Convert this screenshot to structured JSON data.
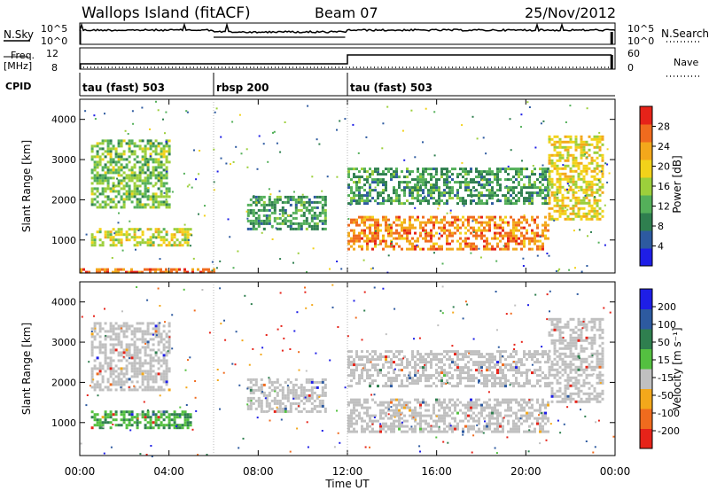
{
  "header": {
    "title": "Wallops Island (fitACF)",
    "beam": "Beam 07",
    "date": "25/Nov/2012"
  },
  "strip": {
    "nsky_label": "N.Sky",
    "nsky_ticks": [
      "10^5",
      "10^0"
    ],
    "nsearch_label": "N.Search",
    "nsearch_ticks": [
      "10^5",
      "10^0"
    ],
    "freq_label": "Freq.",
    "freq_unit": "[MHz]",
    "freq_ticks": [
      "12",
      "8"
    ],
    "nave_label": "Nave",
    "nave_ticks": [
      "60",
      "0"
    ],
    "cpid_label": "CPID",
    "cpid_segments": [
      {
        "label": "tau (fast) 503",
        "start_h": 0,
        "end_h": 6
      },
      {
        "label": "rbsp 200",
        "start_h": 6,
        "end_h": 12
      },
      {
        "label": "tau (fast) 503",
        "start_h": 12,
        "end_h": 24
      }
    ]
  },
  "chart_data": [
    {
      "type": "heatmap",
      "title": "",
      "ylabel": "Slant Range [km]",
      "xlabel": "",
      "xlim_hours": [
        0,
        24
      ],
      "ylim_km": [
        180,
        4500
      ],
      "yticks": [
        "4000",
        "3000",
        "2000",
        "1000"
      ],
      "colorbar": {
        "label": "Power [dB]",
        "ticks": [
          "28",
          "24",
          "20",
          "16",
          "12",
          "8",
          "4"
        ],
        "colors": [
          "#1e1ee6",
          "#2d5aa0",
          "#2f7f4f",
          "#54b05a",
          "#9ccf3b",
          "#f2d21a",
          "#f3a81b",
          "#f06b1e",
          "#e62319"
        ]
      },
      "features": [
        {
          "desc": "near-range E-region",
          "t_h": [
            0,
            6
          ],
          "range_km": [
            180,
            300
          ],
          "power_db": 28
        },
        {
          "desc": "morning echoes",
          "t_h": [
            0.5,
            5
          ],
          "range_km": [
            850,
            1300
          ],
          "power_db": 18
        },
        {
          "desc": "morning far echoes",
          "t_h": [
            0.5,
            4
          ],
          "range_km": [
            1800,
            3500
          ],
          "power_db": 14
        },
        {
          "desc": "rbsp band",
          "t_h": [
            7.5,
            11
          ],
          "range_km": [
            1300,
            2100
          ],
          "power_db": 10
        },
        {
          "desc": "afternoon main band",
          "t_h": [
            12,
            21
          ],
          "range_km": [
            800,
            1600
          ],
          "power_db": 26
        },
        {
          "desc": "afternoon upper band",
          "t_h": [
            12,
            21
          ],
          "range_km": [
            1900,
            2800
          ],
          "power_db": 10
        },
        {
          "desc": "dusk rise",
          "t_h": [
            21,
            23.5
          ],
          "range_km": [
            1500,
            3600
          ],
          "power_db": 20
        }
      ]
    },
    {
      "type": "heatmap",
      "title": "",
      "ylabel": "Slant Range [km]",
      "xlabel": "Time UT",
      "xticks": [
        "00:00",
        "04:00",
        "08:00",
        "12:00",
        "16:00",
        "20:00",
        "00:00"
      ],
      "xlim_hours": [
        0,
        24
      ],
      "ylim_km": [
        180,
        4500
      ],
      "yticks": [
        "4000",
        "3000",
        "2000",
        "1000"
      ],
      "colorbar": {
        "label": "Velocity [m s⁻¹]",
        "ticks": [
          "200",
          "100",
          "50",
          "15",
          "-15",
          "-50",
          "-100",
          "-200"
        ],
        "colors": [
          "#1e1ee6",
          "#2d5aa0",
          "#2f7f4f",
          "#54c040",
          "#c0c0c0",
          "#f3a81b",
          "#f06b1e",
          "#e62319"
        ]
      },
      "features": [
        {
          "desc": "morning echoes (toward)",
          "t_h": [
            0.5,
            5
          ],
          "range_km": [
            850,
            1300
          ],
          "velocity": 30
        },
        {
          "desc": "morning far echoes",
          "t_h": [
            0.5,
            4
          ],
          "range_km": [
            1800,
            3500
          ],
          "velocity": 0
        },
        {
          "desc": "rbsp band",
          "t_h": [
            7.5,
            11
          ],
          "range_km": [
            1300,
            2100
          ],
          "velocity": 0
        },
        {
          "desc": "afternoon main band",
          "t_h": [
            12,
            21
          ],
          "range_km": [
            800,
            1600
          ],
          "velocity": 0
        },
        {
          "desc": "afternoon upper band",
          "t_h": [
            12,
            21
          ],
          "range_km": [
            1900,
            2800
          ],
          "velocity": 0
        },
        {
          "desc": "dusk rise",
          "t_h": [
            21,
            23.5
          ],
          "range_km": [
            1500,
            3600
          ],
          "velocity": 0
        }
      ]
    }
  ]
}
